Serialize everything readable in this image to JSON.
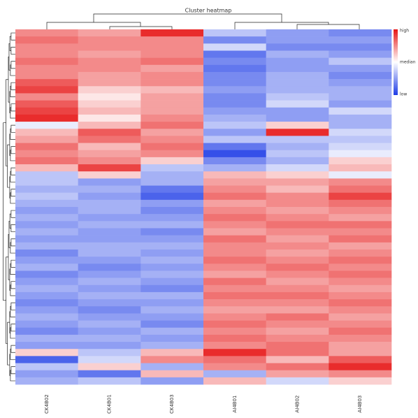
{
  "chart_data": {
    "type": "heatmap",
    "title": "Cluster heatmap",
    "categories": [
      "CK4B02",
      "CK4B01",
      "CK4B03",
      "AI4B01",
      "AI4B02",
      "AI4B03"
    ],
    "zlim": [
      -1,
      1
    ],
    "colorbar_labels": [
      "high",
      "median",
      "low"
    ],
    "colors": {
      "low": "#1e3ce6",
      "median": "#ffffff",
      "high": "#e61414"
    },
    "z": [
      [
        0.5,
        0.4,
        0.9,
        -0.3,
        -0.5,
        -0.6
      ],
      [
        0.6,
        0.5,
        0.5,
        -0.6,
        -0.5,
        -0.5
      ],
      [
        0.5,
        0.5,
        0.5,
        -0.2,
        -0.6,
        -0.6
      ],
      [
        0.5,
        0.4,
        0.5,
        -0.7,
        -0.4,
        -0.5
      ],
      [
        0.6,
        0.5,
        0.6,
        -0.6,
        -0.5,
        -0.3
      ],
      [
        0.5,
        0.5,
        0.4,
        -0.7,
        -0.5,
        -0.5
      ],
      [
        0.5,
        0.4,
        0.5,
        -0.6,
        -0.4,
        -0.6
      ],
      [
        0.7,
        0.4,
        0.5,
        -0.6,
        -0.4,
        -0.5
      ],
      [
        0.8,
        0.2,
        0.3,
        -0.5,
        -0.4,
        -0.4
      ],
      [
        0.5,
        0.1,
        0.4,
        -0.6,
        -0.3,
        -0.4
      ],
      [
        0.7,
        0.2,
        0.4,
        -0.6,
        -0.2,
        -0.5
      ],
      [
        0.8,
        0.3,
        0.4,
        -0.5,
        -0.5,
        -0.2
      ],
      [
        0.9,
        0.1,
        0.5,
        -0.4,
        -0.5,
        -0.4
      ],
      [
        -0.1,
        0.3,
        0.6,
        -0.3,
        0.2,
        -0.4
      ],
      [
        0.3,
        0.7,
        0.4,
        -0.5,
        0.9,
        -0.2
      ],
      [
        0.4,
        0.6,
        0.5,
        -0.3,
        -0.3,
        -0.3
      ],
      [
        0.6,
        0.3,
        0.6,
        -0.7,
        -0.4,
        -0.2
      ],
      [
        0.5,
        0.4,
        0.5,
        -0.9,
        -0.3,
        -0.1
      ],
      [
        0.6,
        0.5,
        0.2,
        -0.6,
        -0.4,
        0.2
      ],
      [
        0.3,
        0.8,
        -0.3,
        -0.4,
        -0.2,
        0.3
      ],
      [
        -0.3,
        0.2,
        -0.4,
        0.3,
        0.2,
        -0.1
      ],
      [
        -0.3,
        -0.5,
        -0.4,
        0.4,
        0.4,
        0.5
      ],
      [
        -0.4,
        -0.4,
        -0.7,
        0.5,
        0.3,
        0.6
      ],
      [
        -0.3,
        -0.5,
        -0.8,
        0.6,
        0.5,
        0.8
      ],
      [
        -0.4,
        -0.4,
        -0.5,
        0.4,
        0.5,
        0.6
      ],
      [
        -0.5,
        -0.4,
        -0.6,
        0.5,
        0.4,
        0.5
      ],
      [
        -0.4,
        -0.5,
        -0.5,
        0.6,
        0.5,
        0.4
      ],
      [
        -0.5,
        -0.4,
        -0.4,
        0.5,
        0.6,
        0.6
      ],
      [
        -0.4,
        -0.5,
        -0.6,
        0.4,
        0.5,
        0.5
      ],
      [
        -0.5,
        -0.5,
        -0.5,
        0.6,
        0.4,
        0.6
      ],
      [
        -0.4,
        -0.4,
        -0.4,
        0.5,
        0.5,
        0.4
      ],
      [
        -0.6,
        -0.4,
        -0.5,
        0.5,
        0.4,
        0.5
      ],
      [
        -0.5,
        -0.5,
        -0.4,
        0.6,
        0.5,
        0.6
      ],
      [
        -0.4,
        -0.6,
        -0.5,
        0.5,
        0.6,
        0.5
      ],
      [
        -0.6,
        -0.5,
        -0.4,
        0.4,
        0.5,
        0.6
      ],
      [
        -0.5,
        -0.4,
        -0.5,
        0.6,
        0.4,
        0.5
      ],
      [
        -0.4,
        -0.5,
        -0.6,
        0.5,
        0.5,
        0.4
      ],
      [
        -0.5,
        -0.4,
        -0.4,
        0.6,
        0.6,
        0.5
      ],
      [
        -0.6,
        -0.5,
        -0.5,
        0.5,
        0.5,
        0.6
      ],
      [
        -0.5,
        -0.6,
        -0.4,
        0.4,
        0.4,
        0.5
      ],
      [
        -0.4,
        -0.5,
        -0.5,
        0.5,
        0.6,
        0.4
      ],
      [
        -0.5,
        -0.4,
        -0.6,
        0.6,
        0.5,
        0.5
      ],
      [
        -0.6,
        -0.5,
        -0.4,
        0.5,
        0.4,
        0.6
      ],
      [
        -0.4,
        -0.4,
        -0.5,
        0.6,
        0.5,
        0.5
      ],
      [
        -0.5,
        -0.5,
        -0.4,
        0.5,
        0.6,
        0.4
      ],
      [
        0.2,
        -0.3,
        0.3,
        0.9,
        0.6,
        0.4
      ],
      [
        -0.8,
        -0.2,
        0.5,
        0.6,
        0.3,
        0.7
      ],
      [
        -0.3,
        0.2,
        -0.4,
        0.5,
        0.6,
        0.9
      ],
      [
        -0.5,
        -0.7,
        0.3,
        -0.4,
        0.4,
        0.5
      ],
      [
        -0.4,
        -0.3,
        -0.5,
        0.3,
        -0.2,
        0.2
      ]
    ]
  }
}
